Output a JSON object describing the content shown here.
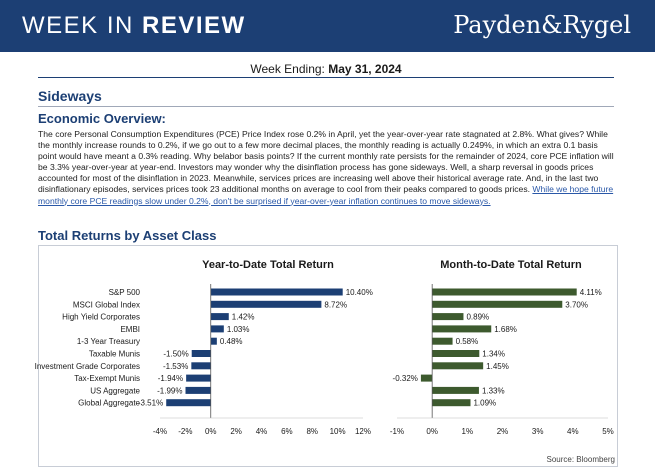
{
  "header": {
    "title_light": "WEEK IN ",
    "title_bold": "REVIEW",
    "logo": "Payden&Rygel"
  },
  "week": {
    "label": "Week Ending: ",
    "date": "May 31, 2024"
  },
  "section_title": "Sideways",
  "overview_title": "Economic Overview:",
  "body": {
    "text": "The core Personal Consumption Expenditures (PCE) Price Index rose 0.2% in April, yet the year-over-year rate stagnated at 2.8%. What gives? While the monthly increase rounds to 0.2%, if we go out to a few more decimal places, the monthly reading is actually 0.249%, in which an extra 0.1 basis point would have meant a 0.3% reading. Why belabor basis points? If the current monthly rate persists for the remainder of 2024, core PCE inflation will be 3.3% year-over-year at year-end. Investors may wonder why the disinflation process has gone sideways. Well, a sharp reversal in goods prices accounted for most of the disinflation in 2023. Meanwhile, services prices are increasing well above their historical average rate. And, in the last two disinflationary episodes, services prices took 23 additional months on average to cool from their peaks compared to goods prices. ",
    "link": "While we hope future monthly core PCE readings slow under 0.2%, don't be surprised if year-over-year inflation continues to move sideways."
  },
  "returns_title": "Total Returns by Asset Class",
  "source": "Source: Bloomberg",
  "colors": {
    "navy": "#1c3f74",
    "green": "#3d5a2e"
  },
  "chart_data": [
    {
      "type": "bar",
      "orientation": "horizontal",
      "title": "Year-to-Date Total Return",
      "categories": [
        "S&P 500",
        "MSCI Global Index",
        "High Yield Corporates",
        "EMBI",
        "1-3 Year Treasury",
        "Taxable Munis",
        "Investment Grade Corporates",
        "Tax-Exempt Munis",
        "US Aggregate",
        "Global Aggregate"
      ],
      "values": [
        10.4,
        8.72,
        1.42,
        1.03,
        0.48,
        -1.5,
        -1.53,
        -1.94,
        -1.99,
        -3.51
      ],
      "labels": [
        "10.40%",
        "8.72%",
        "1.42%",
        "1.03%",
        "0.48%",
        "-1.50%",
        "-1.53%",
        "-1.94%",
        "-1.99%",
        "-3.51%"
      ],
      "xlim": [
        -4,
        12
      ],
      "ticks": [
        -4,
        -2,
        0,
        2,
        4,
        6,
        8,
        10,
        12
      ],
      "tick_labels": [
        "-4%",
        "-2%",
        "0%",
        "2%",
        "4%",
        "6%",
        "8%",
        "10%",
        "12%"
      ],
      "color": "#1c3f74"
    },
    {
      "type": "bar",
      "orientation": "horizontal",
      "title": "Month-to-Date Total Return",
      "categories": [
        "S&P 500",
        "MSCI Global Index",
        "High Yield Corporates",
        "EMBI",
        "1-3 Year Treasury",
        "Taxable Munis",
        "Investment Grade Corporates",
        "Tax-Exempt Munis",
        "US Aggregate",
        "Global Aggregate"
      ],
      "values": [
        4.11,
        3.7,
        0.89,
        1.68,
        0.58,
        1.34,
        1.45,
        -0.32,
        1.33,
        1.09
      ],
      "labels": [
        "4.11%",
        "3.70%",
        "0.89%",
        "1.68%",
        "0.58%",
        "1.34%",
        "1.45%",
        "-0.32%",
        "1.33%",
        "1.09%"
      ],
      "xlim": [
        -1,
        5
      ],
      "ticks": [
        -1,
        0,
        1,
        2,
        3,
        4,
        5
      ],
      "tick_labels": [
        "-1%",
        "0%",
        "1%",
        "2%",
        "3%",
        "4%",
        "5%"
      ],
      "color": "#3d5a2e"
    }
  ]
}
